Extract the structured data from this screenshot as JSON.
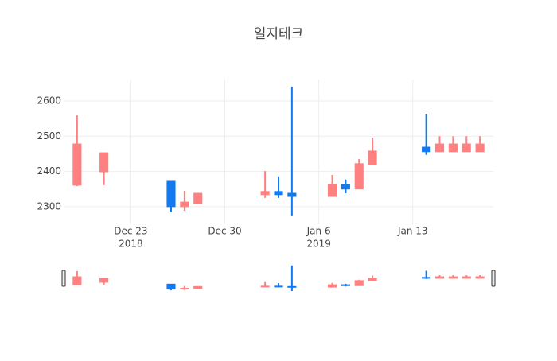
{
  "chart_data": {
    "type": "candlestick",
    "title": "일지테크",
    "x": [
      "2018-12-19",
      "2018-12-21",
      "2018-12-26",
      "2018-12-27",
      "2018-12-28",
      "2019-01-02",
      "2019-01-03",
      "2019-01-04",
      "2019-01-07",
      "2019-01-08",
      "2019-01-09",
      "2019-01-10",
      "2019-01-14",
      "2019-01-15",
      "2019-01-16",
      "2019-01-17",
      "2019-01-18"
    ],
    "open": [
      2361,
      2399,
      2372,
      2300,
      2309,
      2334,
      2343,
      2338,
      2329,
      2363,
      2350,
      2419,
      2469,
      2456,
      2456,
      2456,
      2456
    ],
    "high": [
      2559,
      2453,
      2372,
      2345,
      2338,
      2401,
      2386,
      2641,
      2390,
      2377,
      2435,
      2496,
      2564,
      2500,
      2500,
      2500,
      2500
    ],
    "low": [
      2358,
      2361,
      2284,
      2288,
      2309,
      2325,
      2325,
      2273,
      2329,
      2338,
      2350,
      2419,
      2447,
      2456,
      2456,
      2456,
      2456
    ],
    "close": [
      2478,
      2453,
      2300,
      2313,
      2338,
      2343,
      2334,
      2329,
      2363,
      2350,
      2422,
      2458,
      2456,
      2478,
      2478,
      2478,
      2478
    ],
    "increasing_color": "#ff8080",
    "decreasing_color": "#1279f0",
    "xlim": [
      "2018-12-18",
      "2019-01-19"
    ],
    "xticks": [
      {
        "value": "2018-12-23",
        "label": [
          "Dec 23",
          "2018"
        ]
      },
      {
        "value": "2018-12-30",
        "label": [
          "Dec 30"
        ]
      },
      {
        "value": "2019-01-06",
        "label": [
          "Jan 6",
          "2019"
        ]
      },
      {
        "value": "2019-01-13",
        "label": [
          "Jan 13"
        ]
      }
    ],
    "ylim": [
      2250,
      2661
    ],
    "yticks": [
      2300,
      2400,
      2500,
      2600
    ],
    "grid": true,
    "rangeslider": true
  }
}
